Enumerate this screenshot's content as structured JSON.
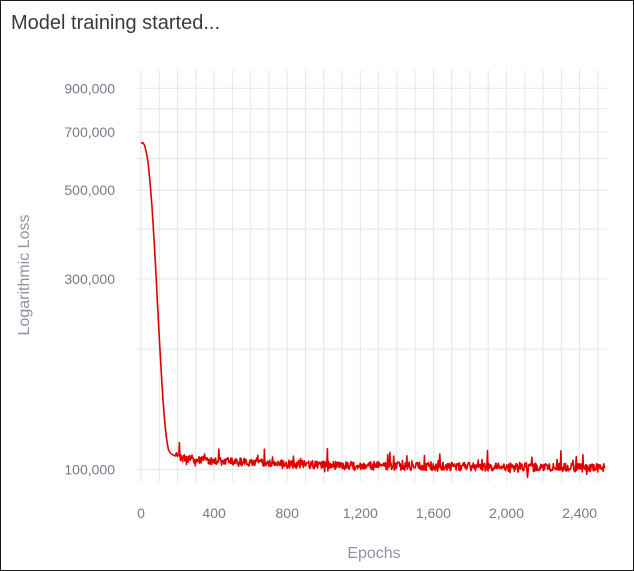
{
  "status_message": "Model training started...",
  "chart_data": {
    "type": "line",
    "title": "",
    "xlabel": "Epochs",
    "ylabel": "Logarithmic Loss",
    "y_scale": "log",
    "xlim": [
      0,
      2550
    ],
    "ylim": [
      93000,
      1000000
    ],
    "x_ticks": [
      "0",
      "400",
      "800",
      "1,200",
      "1,600",
      "2,000",
      "2,400"
    ],
    "x_tick_values": [
      0,
      400,
      800,
      1200,
      1600,
      2000,
      2400
    ],
    "y_ticks": [
      "100,000",
      "300,000",
      "500,000",
      "700,000",
      "900,000"
    ],
    "y_tick_values": [
      100000,
      300000,
      500000,
      700000,
      900000
    ],
    "grid": true,
    "series": [
      {
        "color": "#e00000",
        "x": [
          0,
          10,
          20,
          30,
          40,
          50,
          60,
          70,
          80,
          90,
          100,
          110,
          120,
          130,
          140,
          150,
          160,
          170,
          180,
          190,
          200,
          220,
          250,
          300,
          400,
          500,
          600,
          700,
          800,
          900,
          1000,
          1200,
          1400,
          1600,
          1800,
          2000,
          2200,
          2400,
          2550
        ],
        "y": [
          655000,
          658000,
          648000,
          620000,
          580000,
          520000,
          455000,
          385000,
          320000,
          262000,
          215000,
          178000,
          150000,
          131000,
          119000,
          112000,
          110000,
          109000,
          108500,
          108000,
          107500,
          107000,
          106500,
          106000,
          105000,
          104500,
          104000,
          103500,
          103000,
          102800,
          102500,
          102200,
          102000,
          101800,
          101600,
          101400,
          101200,
          101000,
          100800
        ]
      }
    ]
  }
}
